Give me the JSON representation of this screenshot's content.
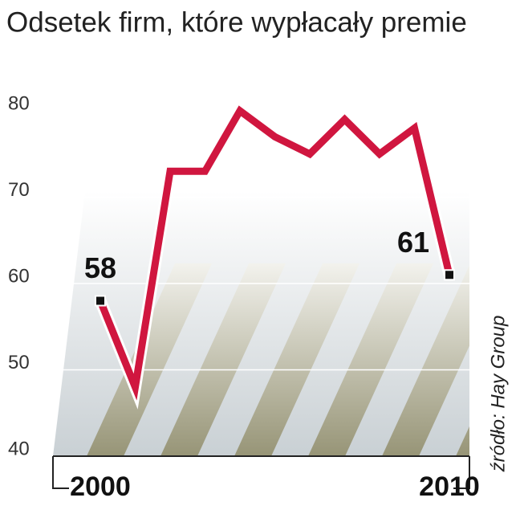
{
  "chart_data": {
    "type": "line",
    "title": "Odsetek firm, które wypłacały premie",
    "x": [
      2000,
      2001,
      2002,
      2003,
      2004,
      2005,
      2006,
      2007,
      2008,
      2009,
      2010
    ],
    "series": [
      {
        "name": "Odsetek firm",
        "color": "#d0163f",
        "values": [
          58,
          48,
          73,
          73,
          80,
          77,
          75,
          79,
          75,
          78,
          61
        ]
      }
    ],
    "xlim": [
      2000,
      2010
    ],
    "xticks": [
      2000,
      2010
    ],
    "ylim": [
      40,
      80
    ],
    "yticks": [
      40,
      50,
      60,
      70,
      80
    ],
    "grid": true,
    "source": "źródło: Hay Group"
  }
}
